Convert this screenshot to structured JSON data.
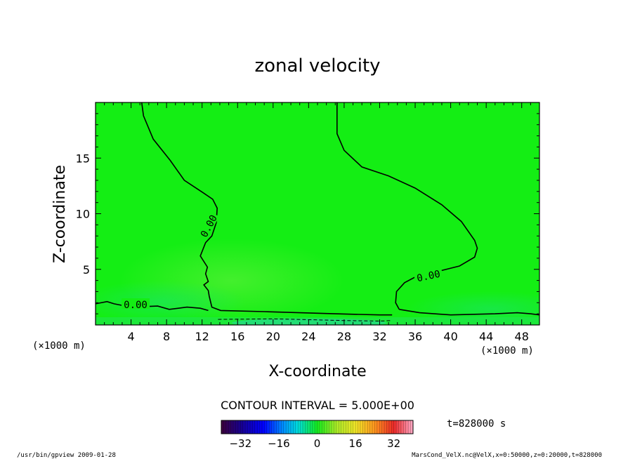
{
  "chart_data": {
    "type": "contour",
    "title": "zonal velocity",
    "xlabel": "X-coordinate",
    "ylabel": "Z-coordinate",
    "x_unit": "(×1000 m)",
    "y_unit": "(×1000 m)",
    "xlim": [
      0,
      50
    ],
    "ylim": [
      0,
      20
    ],
    "x_ticks": [
      4,
      8,
      12,
      16,
      20,
      24,
      28,
      32,
      36,
      40,
      44,
      48
    ],
    "y_ticks": [
      5,
      10,
      15
    ],
    "contour_interval_text": "CONTOUR INTERVAL = 5.000E+00",
    "contour_labels": [
      "0.00",
      "0.00",
      "0.00"
    ],
    "colorbar": {
      "min": -40,
      "max": 40,
      "ticks": [
        -32,
        -16,
        0,
        16,
        32
      ]
    },
    "zero_contours": [
      [
        [
          5.2,
          20
        ],
        [
          5.4,
          18.8
        ],
        [
          6.5,
          16.7
        ],
        [
          8.4,
          14.8
        ],
        [
          10,
          13
        ],
        [
          12.1,
          11.9
        ],
        [
          13.2,
          11.3
        ],
        [
          13.7,
          10.5
        ],
        [
          13.6,
          9.2
        ],
        [
          13.1,
          8
        ],
        [
          12.4,
          7.4
        ],
        [
          11.8,
          6.2
        ],
        [
          12.6,
          5.2
        ],
        [
          12.4,
          4.6
        ],
        [
          12.7,
          3.9
        ],
        [
          12.2,
          3.6
        ],
        [
          12.7,
          3.1
        ],
        [
          12.8,
          2.6
        ],
        [
          13.1,
          1.6
        ],
        [
          14.1,
          1.3
        ],
        [
          19,
          1.2
        ],
        [
          27,
          1.0
        ],
        [
          32,
          0.9
        ],
        [
          33.4,
          0.9
        ]
      ],
      [
        [
          27.2,
          20
        ],
        [
          27.2,
          17.2
        ],
        [
          28,
          15.7
        ],
        [
          30,
          14.2
        ],
        [
          33,
          13.4
        ],
        [
          36,
          12.3
        ],
        [
          39,
          10.8
        ],
        [
          41.2,
          9.3
        ],
        [
          42.7,
          7.6
        ],
        [
          43,
          6.9
        ],
        [
          42.7,
          6.1
        ],
        [
          41,
          5.3
        ],
        [
          38,
          4.7
        ],
        [
          36,
          4.3
        ],
        [
          34.8,
          3.8
        ],
        [
          33.9,
          3
        ],
        [
          33.8,
          2
        ],
        [
          34.2,
          1.4
        ]
      ],
      [
        [
          0,
          1.9
        ],
        [
          1.3,
          2.1
        ],
        [
          2.1,
          1.9
        ],
        [
          4,
          1.6
        ],
        [
          7,
          1.7
        ],
        [
          8.3,
          1.4
        ],
        [
          10.3,
          1.6
        ],
        [
          11.8,
          1.5
        ],
        [
          12.7,
          1.3
        ]
      ],
      [
        [
          34.2,
          1.4
        ],
        [
          36.5,
          1.1
        ],
        [
          40,
          0.9
        ],
        [
          45,
          1.0
        ],
        [
          47.5,
          1.1
        ],
        [
          49,
          1.0
        ],
        [
          50,
          0.9
        ]
      ]
    ],
    "negative_contours": [
      [
        [
          13.8,
          0.5
        ],
        [
          20,
          0.55
        ],
        [
          28,
          0.4
        ],
        [
          32,
          0.35
        ],
        [
          33.4,
          0.4
        ]
      ]
    ],
    "time_label": "t=828000 s",
    "footer_left": "/usr/bin/gpview   2009-01-28",
    "footer_right": "MarsCond_VelX.nc@VelX,x=0:50000,z=0:20000,t=828000",
    "colors": {
      "field": "#14ee14",
      "field_light": "#3aef2a",
      "field_cyanish": "#20e86a",
      "line": "#000000"
    }
  }
}
